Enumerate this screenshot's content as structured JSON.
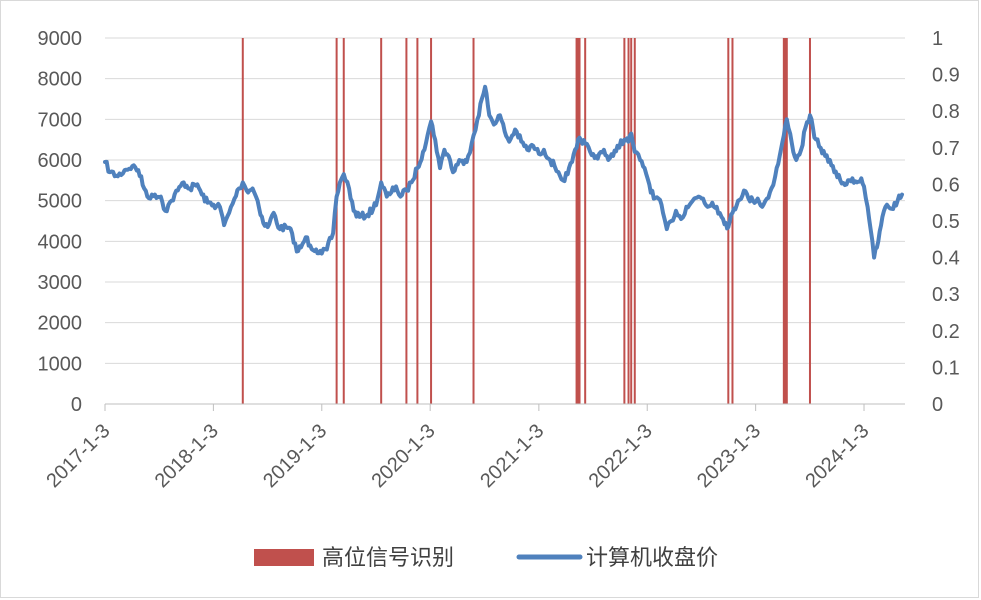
{
  "chart_data": {
    "type": "line",
    "x_tick_labels": [
      "2017-1-3",
      "2018-1-3",
      "2019-1-3",
      "2020-1-3",
      "2021-1-3",
      "2022-1-3",
      "2023-1-3",
      "2024-1-3"
    ],
    "y_left": {
      "ylim": [
        0,
        9000
      ],
      "ticks": [
        "0",
        "1000",
        "2000",
        "3000",
        "4000",
        "5000",
        "6000",
        "7000",
        "8000",
        "9000"
      ]
    },
    "y_right": {
      "ylim": [
        0,
        1
      ],
      "ticks": [
        "0",
        "0.1",
        "0.2",
        "0.3",
        "0.4",
        "0.5",
        "0.6",
        "0.7",
        "0.8",
        "0.9",
        "1"
      ]
    },
    "grid": true,
    "legend_position": "bottom",
    "series": [
      {
        "name": "高位信号识别",
        "kind": "signal-bars",
        "axis": "right",
        "color": "#C0504D",
        "value": 1,
        "dates": [
          "2018-04-12",
          "2019-02-22",
          "2019-03-18",
          "2019-07-22",
          "2019-10-15",
          "2019-11-21",
          "2020-01-06",
          "2020-05-28",
          "2021-05-10",
          "2021-05-13",
          "2021-05-17",
          "2021-05-20",
          "2021-06-08",
          "2021-10-18",
          "2021-11-01",
          "2021-11-10",
          "2021-11-22",
          "2022-10-03",
          "2022-10-17",
          "2023-04-08",
          "2023-04-12",
          "2023-04-18",
          "2023-07-05"
        ]
      },
      {
        "name": "计算机收盘价",
        "kind": "line",
        "axis": "left",
        "color": "#4F81BD",
        "points": [
          [
            "2017-01-03",
            5950
          ],
          [
            "2017-01-20",
            5700
          ],
          [
            "2017-02-15",
            5600
          ],
          [
            "2017-03-10",
            5750
          ],
          [
            "2017-04-05",
            5850
          ],
          [
            "2017-04-25",
            5750
          ],
          [
            "2017-05-15",
            5300
          ],
          [
            "2017-06-05",
            5050
          ],
          [
            "2017-06-20",
            5150
          ],
          [
            "2017-07-10",
            5100
          ],
          [
            "2017-07-25",
            4750
          ],
          [
            "2017-08-15",
            5000
          ],
          [
            "2017-09-05",
            5250
          ],
          [
            "2017-09-25",
            5450
          ],
          [
            "2017-10-15",
            5300
          ],
          [
            "2017-11-10",
            5400
          ],
          [
            "2017-11-25",
            5150
          ],
          [
            "2017-12-15",
            4950
          ],
          [
            "2018-01-03",
            4900
          ],
          [
            "2018-01-25",
            4850
          ],
          [
            "2018-02-08",
            4400
          ],
          [
            "2018-02-25",
            4700
          ],
          [
            "2018-03-15",
            5050
          ],
          [
            "2018-03-30",
            5300
          ],
          [
            "2018-04-12",
            5450
          ],
          [
            "2018-04-25",
            5250
          ],
          [
            "2018-05-15",
            5300
          ],
          [
            "2018-06-01",
            5000
          ],
          [
            "2018-06-20",
            4450
          ],
          [
            "2018-07-05",
            4350
          ],
          [
            "2018-07-25",
            4700
          ],
          [
            "2018-08-15",
            4300
          ],
          [
            "2018-09-05",
            4350
          ],
          [
            "2018-09-25",
            4200
          ],
          [
            "2018-10-11",
            3750
          ],
          [
            "2018-10-25",
            3850
          ],
          [
            "2018-11-10",
            4100
          ],
          [
            "2018-11-25",
            3900
          ],
          [
            "2018-12-15",
            3800
          ],
          [
            "2019-01-03",
            3700
          ],
          [
            "2019-01-20",
            3800
          ],
          [
            "2019-02-10",
            4200
          ],
          [
            "2019-02-22",
            5100
          ],
          [
            "2019-03-05",
            5450
          ],
          [
            "2019-03-18",
            5650
          ],
          [
            "2019-04-05",
            5300
          ],
          [
            "2019-04-20",
            4750
          ],
          [
            "2019-05-10",
            4600
          ],
          [
            "2019-06-05",
            4650
          ],
          [
            "2019-06-25",
            4800
          ],
          [
            "2019-07-10",
            5050
          ],
          [
            "2019-07-22",
            5450
          ],
          [
            "2019-08-10",
            5100
          ],
          [
            "2019-08-25",
            5200
          ],
          [
            "2019-09-10",
            5350
          ],
          [
            "2019-09-25",
            5100
          ],
          [
            "2019-10-15",
            5250
          ],
          [
            "2019-11-01",
            5450
          ],
          [
            "2019-11-21",
            5800
          ],
          [
            "2019-12-10",
            6200
          ],
          [
            "2019-12-25",
            6600
          ],
          [
            "2020-01-06",
            6950
          ],
          [
            "2020-01-20",
            6500
          ],
          [
            "2020-02-05",
            5800
          ],
          [
            "2020-02-20",
            6250
          ],
          [
            "2020-03-05",
            6100
          ],
          [
            "2020-03-20",
            5700
          ],
          [
            "2020-04-10",
            6000
          ],
          [
            "2020-04-25",
            5900
          ],
          [
            "2020-05-10",
            6100
          ],
          [
            "2020-05-28",
            6600
          ],
          [
            "2020-06-10",
            7000
          ],
          [
            "2020-06-25",
            7500
          ],
          [
            "2020-07-06",
            7800
          ],
          [
            "2020-07-20",
            7100
          ],
          [
            "2020-08-10",
            6900
          ],
          [
            "2020-08-25",
            7100
          ],
          [
            "2020-09-10",
            6700
          ],
          [
            "2020-09-25",
            6450
          ],
          [
            "2020-10-15",
            6750
          ],
          [
            "2020-11-05",
            6450
          ],
          [
            "2020-11-25",
            6250
          ],
          [
            "2020-12-15",
            6350
          ],
          [
            "2021-01-03",
            6150
          ],
          [
            "2021-01-20",
            6250
          ],
          [
            "2021-02-10",
            6000
          ],
          [
            "2021-02-25",
            5850
          ],
          [
            "2021-03-10",
            5700
          ],
          [
            "2021-03-25",
            5500
          ],
          [
            "2021-04-10",
            5650
          ],
          [
            "2021-04-25",
            5950
          ],
          [
            "2021-05-10",
            6300
          ],
          [
            "2021-05-20",
            6550
          ],
          [
            "2021-06-08",
            6400
          ],
          [
            "2021-06-25",
            6200
          ],
          [
            "2021-07-10",
            6050
          ],
          [
            "2021-07-25",
            6150
          ],
          [
            "2021-08-10",
            6250
          ],
          [
            "2021-08-25",
            6000
          ],
          [
            "2021-09-10",
            6100
          ],
          [
            "2021-09-25",
            6350
          ],
          [
            "2021-10-18",
            6500
          ],
          [
            "2021-11-01",
            6450
          ],
          [
            "2021-11-10",
            6650
          ],
          [
            "2021-11-22",
            6200
          ],
          [
            "2021-12-10",
            6000
          ],
          [
            "2021-12-25",
            5800
          ],
          [
            "2022-01-10",
            5400
          ],
          [
            "2022-01-25",
            5050
          ],
          [
            "2022-02-10",
            5050
          ],
          [
            "2022-02-25",
            4700
          ],
          [
            "2022-03-10",
            4300
          ],
          [
            "2022-03-25",
            4500
          ],
          [
            "2022-04-10",
            4750
          ],
          [
            "2022-04-27",
            4550
          ],
          [
            "2022-05-15",
            4850
          ],
          [
            "2022-06-05",
            5000
          ],
          [
            "2022-06-25",
            5100
          ],
          [
            "2022-07-10",
            5050
          ],
          [
            "2022-07-25",
            4850
          ],
          [
            "2022-08-10",
            4950
          ],
          [
            "2022-08-25",
            4850
          ],
          [
            "2022-09-10",
            4600
          ],
          [
            "2022-09-25",
            4450
          ],
          [
            "2022-10-03",
            4350
          ],
          [
            "2022-10-17",
            4700
          ],
          [
            "2022-11-05",
            5000
          ],
          [
            "2022-11-25",
            5250
          ],
          [
            "2022-12-10",
            5050
          ],
          [
            "2022-12-25",
            5000
          ],
          [
            "2023-01-10",
            5050
          ],
          [
            "2023-01-25",
            4850
          ],
          [
            "2023-02-10",
            5050
          ],
          [
            "2023-02-25",
            5300
          ],
          [
            "2023-03-10",
            5600
          ],
          [
            "2023-03-25",
            6100
          ],
          [
            "2023-04-08",
            6600
          ],
          [
            "2023-04-18",
            7000
          ],
          [
            "2023-05-05",
            6400
          ],
          [
            "2023-05-20",
            6000
          ],
          [
            "2023-06-05",
            6250
          ],
          [
            "2023-06-20",
            6800
          ],
          [
            "2023-07-05",
            7100
          ],
          [
            "2023-07-20",
            6550
          ],
          [
            "2023-08-10",
            6300
          ],
          [
            "2023-08-25",
            6100
          ],
          [
            "2023-09-10",
            6000
          ],
          [
            "2023-09-25",
            5700
          ],
          [
            "2023-10-15",
            5500
          ],
          [
            "2023-11-05",
            5400
          ],
          [
            "2023-11-25",
            5550
          ],
          [
            "2023-12-10",
            5450
          ],
          [
            "2023-12-25",
            5550
          ],
          [
            "2024-01-03",
            5350
          ],
          [
            "2024-01-15",
            4850
          ],
          [
            "2024-01-25",
            4300
          ],
          [
            "2024-02-06",
            3600
          ],
          [
            "2024-02-20",
            4000
          ],
          [
            "2024-03-05",
            4600
          ],
          [
            "2024-03-20",
            4900
          ],
          [
            "2024-04-05",
            4800
          ],
          [
            "2024-04-25",
            5000
          ],
          [
            "2024-05-10",
            5150
          ]
        ]
      }
    ]
  }
}
